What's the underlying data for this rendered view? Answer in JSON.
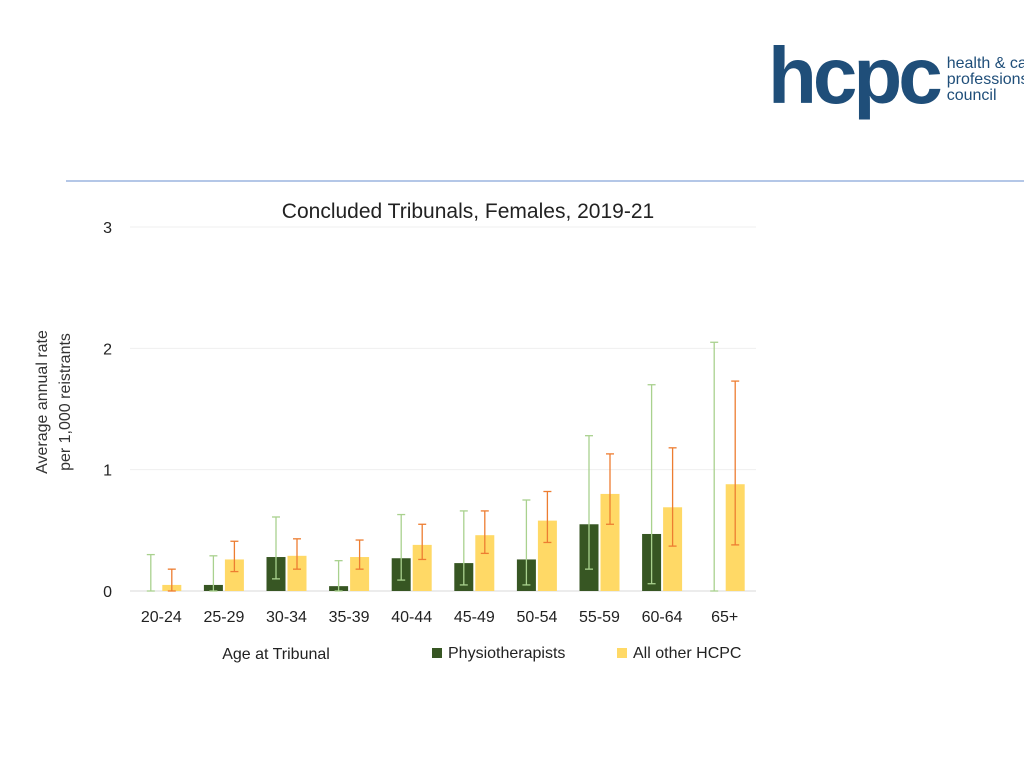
{
  "logo": {
    "mark": "hcpc",
    "line1": "health & care",
    "line2": "professions",
    "line3": "council",
    "color": "#1f4e79"
  },
  "chart_data": {
    "type": "bar",
    "title": "Concluded Tribunals, Females, 2019-21",
    "xlabel": "Age at Tribunal",
    "ylabel_line1": "Average annual rate",
    "ylabel_line2": "per 1,000 reistrants",
    "ylim": [
      0,
      3
    ],
    "yticks": [
      "0",
      "1",
      "2",
      "3"
    ],
    "categories": [
      "20-24",
      "25-29",
      "30-34",
      "35-39",
      "40-44",
      "45-49",
      "50-54",
      "55-59",
      "60-64",
      "65+"
    ],
    "series": [
      {
        "name": "Physiotherapists",
        "color": "#375623",
        "error_color": "#a9d18e",
        "values": [
          0,
          0.05,
          0.28,
          0.04,
          0.27,
          0.23,
          0.26,
          0.55,
          0.47,
          0
        ],
        "lower": [
          0,
          0,
          0.1,
          0,
          0.09,
          0.05,
          0.05,
          0.18,
          0.06,
          0
        ],
        "upper": [
          0.3,
          0.29,
          0.61,
          0.25,
          0.63,
          0.66,
          0.75,
          1.28,
          1.7,
          2.05
        ]
      },
      {
        "name": "All other HCPC",
        "color": "#ffd966",
        "error_color": "#ed7d31",
        "values": [
          0.05,
          0.26,
          0.29,
          0.28,
          0.38,
          0.46,
          0.58,
          0.8,
          0.69,
          0.88
        ],
        "lower": [
          0,
          0.16,
          0.18,
          0.18,
          0.26,
          0.31,
          0.4,
          0.55,
          0.37,
          0.38
        ],
        "upper": [
          0.18,
          0.41,
          0.43,
          0.42,
          0.55,
          0.66,
          0.82,
          1.13,
          1.18,
          1.73
        ]
      }
    ],
    "legend_position": "bottom-right",
    "grid": true
  }
}
